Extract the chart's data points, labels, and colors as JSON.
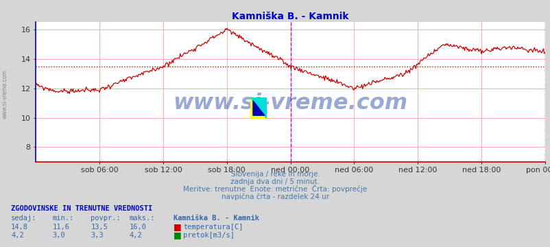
{
  "title": "Kamniška B. - Kamnik",
  "title_color": "#0000cc",
  "bg_color": "#d6d6d6",
  "plot_bg_color": "#ffffff",
  "grid_color": "#ffaaaa",
  "x_labels": [
    "sob 06:00",
    "sob 12:00",
    "sob 18:00",
    "ned 00:00",
    "ned 06:00",
    "ned 12:00",
    "ned 18:00",
    "pon 00:00"
  ],
  "ylim": [
    7.0,
    16.5
  ],
  "yticks": [
    8,
    10,
    12,
    14,
    16
  ],
  "temp_color": "#cc0000",
  "flow_color": "#008800",
  "avg_temp": 13.5,
  "avg_flow": 3.3,
  "watermark": "www.si-vreme.com",
  "watermark_color": "#3355aa",
  "watermark_alpha": 0.5,
  "sub_text1": "Slovenija / reke in morje.",
  "sub_text2": "zadnja dva dni / 5 minut.",
  "sub_text3": "Meritve: trenutne  Enote: metrične  Črta: povprečje",
  "sub_text4": "navpična črta - razdelek 24 ur",
  "table_header": "ZGODOVINSKE IN TRENUTNE VREDNOSTI",
  "col_headers": [
    "sedaj:",
    "min.:",
    "povpr.:",
    "maks.:",
    "Kamniška B. - Kamnik"
  ],
  "row1_vals": [
    "14,8",
    "11,6",
    "13,5",
    "16,0"
  ],
  "row1_label": "temperatura[C]",
  "row2_vals": [
    "4,2",
    "3,0",
    "3,3",
    "4,2"
  ],
  "row2_label": "pretok[m3/s]",
  "n_points": 576,
  "left_spine_color": "#0000cc",
  "bottom_spine_color": "#cc0000"
}
